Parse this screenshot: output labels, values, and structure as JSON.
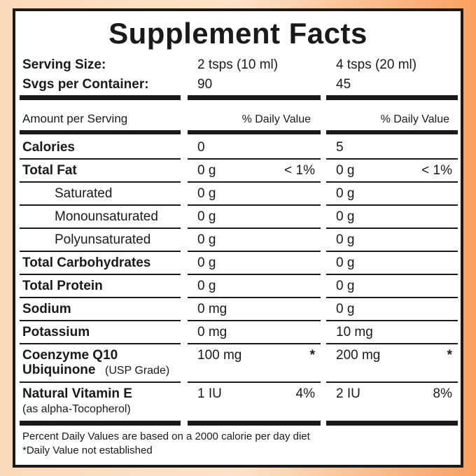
{
  "header": {
    "title": "Supplement Facts",
    "serving_size": {
      "label": "Serving Size:",
      "values": [
        "2 tsps (10 ml)",
        "4 tsps (20 ml)"
      ]
    },
    "servings_per_container": {
      "label": "Svgs per Container:",
      "values": [
        "90",
        "45"
      ]
    }
  },
  "table": {
    "amount_header": "Amount per Serving",
    "dv_headers": [
      "% Daily Value",
      "% Daily Value"
    ],
    "rows": [
      {
        "name": "Calories",
        "bold": true,
        "cells": [
          {
            "amount": "0"
          },
          {
            "amount": "5"
          }
        ]
      },
      {
        "name": "Total Fat",
        "bold": true,
        "cells": [
          {
            "amount": "0 g",
            "dv": "< 1%"
          },
          {
            "amount": "0 g",
            "dv": "< 1%"
          }
        ]
      },
      {
        "name": "Saturated",
        "indent": true,
        "cells": [
          {
            "amount": "0 g"
          },
          {
            "amount": "0 g"
          }
        ]
      },
      {
        "name": "Monounsaturated",
        "indent": true,
        "cells": [
          {
            "amount": "0 g"
          },
          {
            "amount": "0 g"
          }
        ]
      },
      {
        "name": "Polyunsaturated",
        "indent": true,
        "cells": [
          {
            "amount": "0 g"
          },
          {
            "amount": "0 g"
          }
        ]
      },
      {
        "name": "Total Carbohydrates",
        "bold": true,
        "cells": [
          {
            "amount": "0 g"
          },
          {
            "amount": "0 g"
          }
        ]
      },
      {
        "name": "Total Protein",
        "bold": true,
        "cells": [
          {
            "amount": "0 g"
          },
          {
            "amount": "0 g"
          }
        ]
      },
      {
        "name": "Sodium",
        "bold": true,
        "cells": [
          {
            "amount": "0 mg"
          },
          {
            "amount": "0 g"
          }
        ]
      },
      {
        "name": "Potassium",
        "bold": true,
        "cells": [
          {
            "amount": "0 mg"
          },
          {
            "amount": "10 mg"
          }
        ]
      },
      {
        "name": "Coenzyme Q10",
        "name2": "Ubiquinone",
        "note": "(USP Grade)",
        "bold": true,
        "cells": [
          {
            "amount": "100 mg",
            "dv": "*"
          },
          {
            "amount": "200 mg",
            "dv": "*"
          }
        ]
      },
      {
        "name": "Natural Vitamin E",
        "note": "(as alpha-Tocopherol)",
        "bold": true,
        "cells": [
          {
            "amount": "1 IU",
            "dv": "4%"
          },
          {
            "amount": "2 IU",
            "dv": "8%"
          }
        ]
      }
    ]
  },
  "footer": {
    "notes": [
      "Percent Daily Values are based on a 2000 calorie per day diet",
      "*Daily Value not established"
    ]
  }
}
